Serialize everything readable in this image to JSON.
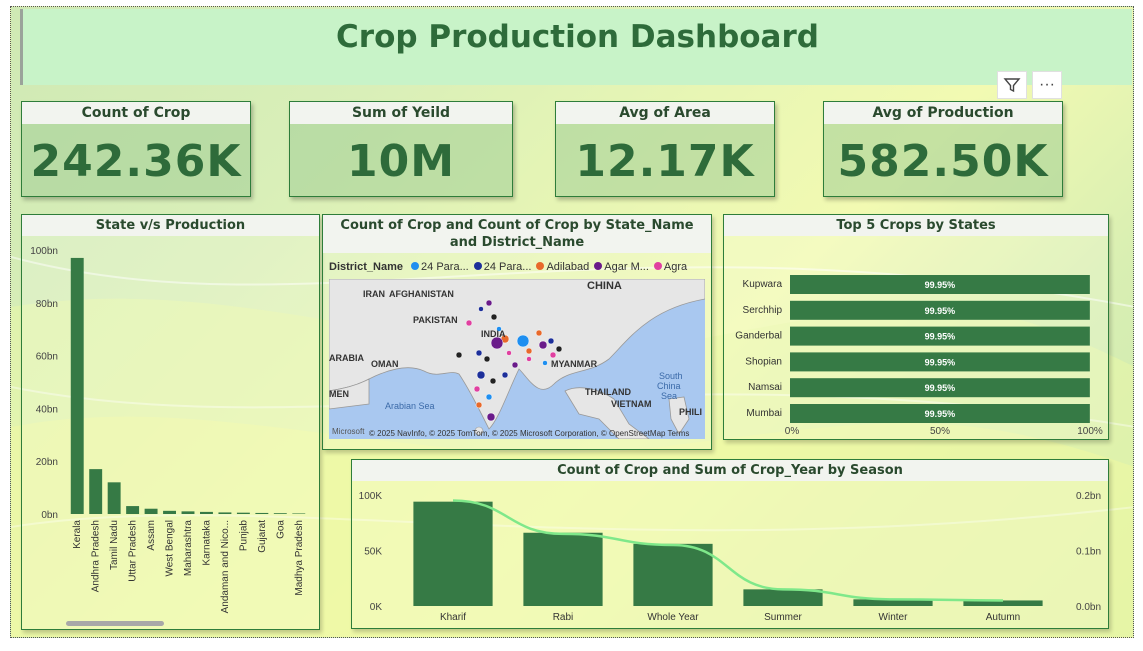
{
  "title": "Crop Production Dashboard",
  "toolbar": {
    "filter_icon": "filter-icon",
    "more_icon": "more-options-icon",
    "more_label": "···"
  },
  "kpis": [
    {
      "label": "Count of Crop",
      "value": "242.36K"
    },
    {
      "label": "Sum of Yeild",
      "value": "10M"
    },
    {
      "label": "Avg of Area",
      "value": "12.17K"
    },
    {
      "label": "Avg of Production",
      "value": "582.50K"
    }
  ],
  "colors": {
    "bar": "#367a45",
    "line": "#7fe88a",
    "accent": "#2e6b3a"
  },
  "state_chart": {
    "title": "State v/s Production",
    "chart_data": {
      "type": "bar",
      "categories": [
        "Kerala",
        "Andhra Pradesh",
        "Tamil Nadu",
        "Uttar Pradesh",
        "Assam",
        "West Bengal",
        "Maharashtra",
        "Karnataka",
        "Andaman and Nico...",
        "Punjab",
        "Gujarat",
        "Goa",
        "Madhya Pradesh"
      ],
      "values": [
        97,
        17,
        12,
        3,
        2,
        1.2,
        1,
        0.8,
        0.6,
        0.5,
        0.4,
        0.3,
        0.2
      ],
      "ylim": [
        0,
        100
      ],
      "yticks": [
        "0bn",
        "20bn",
        "40bn",
        "60bn",
        "80bn",
        "100bn"
      ]
    }
  },
  "map_chart": {
    "title": "Count of Crop and Count of Crop by State_Name and District_Name",
    "legend_title": "District_Name",
    "legend": [
      {
        "name": "24 Para...",
        "color": "#1f8ff0"
      },
      {
        "name": "24 Para...",
        "color": "#1d2f9a"
      },
      {
        "name": "Adilabad",
        "color": "#e8692b"
      },
      {
        "name": "Agar M...",
        "color": "#6a1b8a"
      },
      {
        "name": "Agra",
        "color": "#e040a0"
      }
    ],
    "labels": [
      "IRAN",
      "AFGHANISTAN",
      "CHINA",
      "PAKISTAN",
      "INDIA",
      "ARABIA",
      "OMAN",
      "MYANMAR",
      "THAILAND",
      "VIETNAM",
      "South China Sea",
      "Arabian Sea",
      "PHILI",
      "MEN"
    ],
    "attribution": "© 2025 NavInfo, © 2025 TomTom, © 2025 Microsoft Corporation, © OpenStreetMap  Terms",
    "brand": "Microsoft"
  },
  "top5_chart": {
    "title": "Top 5 Crops by States",
    "chart_data": {
      "type": "bar",
      "orientation": "horizontal",
      "categories": [
        "Kupwara",
        "Serchhip",
        "Ganderbal",
        "Shopian",
        "Namsai",
        "Mumbai"
      ],
      "values": [
        99.95,
        99.95,
        99.95,
        99.95,
        99.95,
        99.95
      ],
      "data_labels": [
        "99.95%",
        "99.95%",
        "99.95%",
        "99.95%",
        "99.95%",
        "99.95%"
      ],
      "xlim": [
        0,
        100
      ],
      "xticks": [
        "0%",
        "50%",
        "100%"
      ]
    }
  },
  "season_chart": {
    "title": "Count of Crop and Sum of Crop_Year by Season",
    "chart_data": {
      "type": "bar",
      "categories": [
        "Kharif",
        "Rabi",
        "Whole Year",
        "Summer",
        "Winter",
        "Autumn"
      ],
      "series": [
        {
          "type": "bar",
          "axis": "left",
          "values": [
            94000,
            66000,
            56000,
            15000,
            6000,
            5000
          ]
        },
        {
          "type": "line",
          "axis": "right",
          "values": [
            0.19,
            0.13,
            0.11,
            0.03,
            0.012,
            0.01
          ]
        }
      ],
      "ylim_left": [
        0,
        100000
      ],
      "yticks_left": [
        "0K",
        "50K",
        "100K"
      ],
      "ylim_right": [
        0,
        0.2
      ],
      "yticks_right": [
        "0.0bn",
        "0.1bn",
        "0.2bn"
      ]
    }
  }
}
